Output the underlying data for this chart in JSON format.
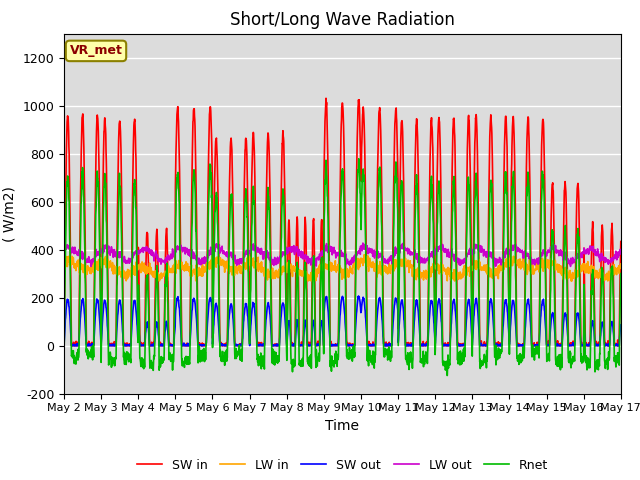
{
  "title": "Short/Long Wave Radiation",
  "xlabel": "Time",
  "ylabel": "( W/m2)",
  "ylim": [
    -200,
    1300
  ],
  "yticks": [
    -200,
    0,
    200,
    400,
    600,
    800,
    1000,
    1200
  ],
  "xtick_labels": [
    "May 2",
    "May 3",
    "May 4",
    "May 5",
    "May 6",
    "May 7",
    "May 8",
    "May 9",
    "May 10",
    "May 11",
    "May 12",
    "May 13",
    "May 14",
    "May 15",
    "May 16",
    "May 17"
  ],
  "legend_labels": [
    "SW in",
    "LW in",
    "SW out",
    "LW out",
    "Rnet"
  ],
  "colors": {
    "SW_in": "#FF0000",
    "LW_in": "#FFA500",
    "SW_out": "#0000FF",
    "LW_out": "#CC00CC",
    "Rnet": "#00BB00"
  },
  "label_box_color": "#FFFFAA",
  "label_box_edge": "#8B8000",
  "plot_bg_color": "#DCDCDC",
  "grid_color": "#FFFFFF",
  "linewidth": 1.2,
  "num_days": 15,
  "pts_per_day": 144
}
